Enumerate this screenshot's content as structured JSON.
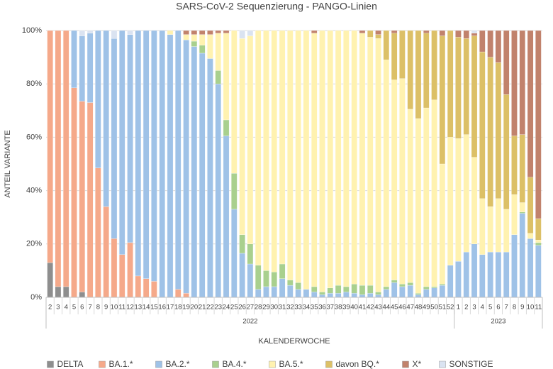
{
  "chart_data": {
    "type": "stacked-bar-percent",
    "title": "SARS-CoV-2 Sequenzierung - PANGO-Linien",
    "x_label": "KALENDERWOCHE",
    "y_label": "ANTEIL VARIANTE",
    "category_groups": [
      {
        "label": "2022",
        "categories": [
          "2",
          "3",
          "4",
          "5",
          "6",
          "7",
          "8",
          "9",
          "10",
          "11",
          "12",
          "13",
          "14",
          "15",
          "16",
          "17",
          "18",
          "19",
          "20",
          "21",
          "22",
          "23",
          "24",
          "25",
          "26",
          "27",
          "28",
          "29",
          "30",
          "31",
          "32",
          "33",
          "34",
          "35",
          "36",
          "37",
          "38",
          "39",
          "40",
          "41",
          "42",
          "43",
          "44",
          "45",
          "46",
          "47",
          "48",
          "49",
          "50",
          "51",
          "52"
        ]
      },
      {
        "label": "2023",
        "categories": [
          "1",
          "2",
          "3",
          "4",
          "5",
          "6",
          "7",
          "8",
          "9",
          "10",
          "11"
        ]
      }
    ],
    "ylim": [
      0,
      100
    ],
    "yticks": [
      {
        "value": 0,
        "label": "0%"
      },
      {
        "value": 20,
        "label": "20%"
      },
      {
        "value": 40,
        "label": "40%"
      },
      {
        "value": 60,
        "label": "60%"
      },
      {
        "value": 80,
        "label": "80%"
      },
      {
        "value": 100,
        "label": "100%"
      }
    ],
    "grid": true,
    "legend": "bottom",
    "series": [
      {
        "name": "DELTA",
        "color": "#8e8e8e",
        "values": [
          13,
          4,
          4,
          0,
          2,
          0,
          0,
          0,
          0,
          0,
          0,
          0,
          0,
          0,
          0,
          0,
          0,
          0,
          0,
          0,
          0,
          0,
          0,
          0,
          0,
          0,
          0,
          0,
          0,
          0,
          0,
          0,
          0,
          0,
          0,
          0,
          0,
          0,
          0,
          0,
          0,
          0,
          0,
          0,
          0,
          0,
          0,
          0,
          0,
          0,
          0,
          0,
          0,
          0,
          0,
          0,
          0,
          0,
          0,
          0,
          0,
          0
        ]
      },
      {
        "name": "BA.1.*",
        "color": "#f5a98a",
        "values": [
          87,
          96,
          96,
          78.5,
          71.5,
          73,
          48.5,
          34,
          22,
          16,
          20.5,
          8,
          7,
          6,
          0,
          0,
          3,
          1.5,
          0,
          0,
          0,
          0,
          0,
          0,
          0,
          0,
          0,
          0,
          0,
          0,
          0,
          0,
          0,
          0,
          0,
          0,
          0,
          0,
          0,
          0,
          0,
          0,
          0,
          0,
          0,
          0,
          0,
          0,
          0,
          0,
          0,
          0,
          0,
          0,
          0,
          0,
          0,
          0,
          0,
          0,
          0,
          0
        ]
      },
      {
        "name": "BA.2.*",
        "color": "#9fc2e7",
        "values": [
          0,
          0,
          0,
          21.5,
          24.5,
          26,
          51.5,
          66,
          75,
          84,
          78,
          92,
          93,
          94,
          100,
          98.5,
          97,
          95,
          94,
          91.5,
          89.5,
          80,
          60.5,
          33,
          16.5,
          12.5,
          3,
          4,
          4,
          7,
          4.5,
          3,
          3,
          2,
          1,
          1.5,
          1.5,
          2,
          1.5,
          1,
          1.5,
          1,
          3,
          5.5,
          4,
          4.5,
          1,
          3,
          3.5,
          4.5,
          12,
          13.5,
          17,
          20,
          16,
          17,
          17,
          17,
          23.5,
          31.5,
          22,
          19.5
        ]
      },
      {
        "name": "BA.4.*",
        "color": "#a9d08e",
        "values": [
          0,
          0,
          0,
          0,
          0,
          0,
          0,
          0,
          0,
          0,
          0,
          0,
          0,
          0,
          0,
          0,
          0,
          0,
          2,
          3,
          0,
          5,
          6,
          13.5,
          7,
          7.5,
          9,
          6,
          5.5,
          5.5,
          2,
          2.5,
          0,
          2,
          1,
          2,
          3,
          2,
          3.5,
          3.5,
          3,
          1,
          1,
          1,
          1,
          1,
          0.5,
          1,
          0.5,
          0.5,
          0,
          0,
          0,
          0,
          0,
          0,
          0,
          0,
          0,
          0.5,
          0,
          1
        ]
      },
      {
        "name": "BA.5.*",
        "color": "#fff2b0",
        "values": [
          0,
          0,
          0,
          0,
          0,
          0,
          0,
          0,
          0,
          0,
          0,
          0,
          0,
          0,
          0,
          1.5,
          0,
          2,
          2.5,
          4,
          9,
          14,
          32.5,
          53.5,
          73.5,
          78,
          88,
          90,
          90.5,
          87.5,
          93.5,
          94.5,
          97,
          95,
          98,
          96.5,
          95.5,
          96,
          95,
          94.5,
          93,
          95,
          85,
          75,
          77,
          65,
          65.5,
          67,
          70,
          45,
          48,
          46,
          44,
          32.5,
          21,
          17,
          20,
          16,
          15,
          3.5,
          2,
          1
        ]
      },
      {
        "name": "davon BQ.*",
        "color": "#dcc067",
        "values": [
          0,
          0,
          0,
          0,
          0,
          0,
          0,
          0,
          0,
          0,
          0,
          0,
          0,
          0,
          0,
          0,
          0,
          0,
          0,
          0,
          0,
          0,
          0,
          0,
          0,
          0,
          0,
          0,
          0,
          0,
          0,
          0,
          0,
          0,
          0,
          0,
          0,
          0,
          0,
          0,
          2.5,
          1.5,
          11,
          17.5,
          18,
          29.5,
          33,
          28,
          26,
          48,
          40,
          38,
          36,
          45.5,
          55,
          56,
          51,
          43,
          22,
          25.5,
          21,
          8
        ]
      },
      {
        "name": "X*",
        "color": "#c1826c",
        "values": [
          0,
          0,
          0,
          0,
          0,
          0,
          0,
          0,
          0,
          0,
          0,
          0,
          0,
          0,
          0,
          0,
          0,
          1.5,
          1.5,
          1.5,
          1.5,
          1,
          1,
          0,
          0,
          0,
          0,
          0,
          0,
          0,
          0,
          0,
          0,
          1,
          0,
          0,
          0,
          0,
          0,
          1,
          0,
          1.5,
          0,
          1,
          0,
          0,
          0,
          1,
          0,
          2,
          0,
          2.5,
          3,
          1,
          8,
          10,
          12,
          24,
          39.5,
          39,
          55,
          70.5
        ]
      },
      {
        "name": "SONSTIGE",
        "color": "#dae3f1",
        "values": [
          0,
          0,
          0,
          0,
          2,
          1,
          0,
          0,
          3,
          0,
          1.5,
          0,
          0,
          0,
          0,
          0,
          0,
          0,
          0,
          0,
          0,
          0,
          0,
          0,
          3,
          2,
          0,
          0,
          0,
          0,
          0,
          0,
          0,
          0,
          0,
          0,
          0,
          0,
          0,
          0,
          0,
          0,
          0,
          0,
          0,
          0,
          0,
          0,
          0,
          0,
          0,
          0,
          0,
          1,
          0,
          0,
          0,
          0,
          0,
          0,
          0,
          0
        ]
      }
    ]
  }
}
